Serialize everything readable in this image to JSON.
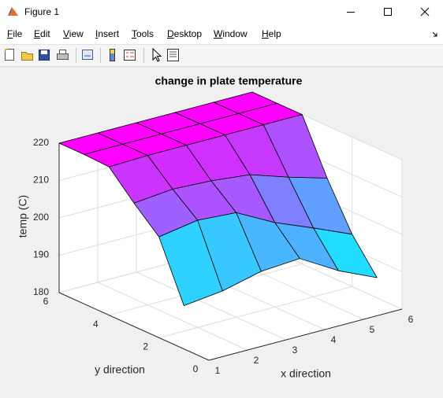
{
  "window": {
    "title": "Figure 1",
    "menu": [
      "File",
      "Edit",
      "View",
      "Insert",
      "Tools",
      "Desktop",
      "Window",
      "Help"
    ]
  },
  "chart_data": {
    "type": "surface",
    "title": "change in plate temperature",
    "x_label": "x direction",
    "y_label": "y direction",
    "z_label": "temp (C)",
    "x": [
      1,
      2,
      3,
      4,
      5,
      6
    ],
    "y": [
      1,
      2,
      3,
      4,
      5,
      6
    ],
    "z": [
      [
        191.6,
        192.8,
        195.3,
        196,
        190,
        185.4
      ],
      [
        207,
        208.7,
        208,
        202.6,
        198.4,
        194
      ],
      [
        213,
        214,
        213.5,
        212.4,
        209,
        206
      ],
      [
        219.7,
        220,
        220,
        220,
        220,
        220
      ],
      [
        220,
        220,
        220,
        220,
        220,
        220
      ],
      [
        220,
        220,
        220,
        220,
        220,
        220
      ]
    ],
    "xlim": [
      1,
      6
    ],
    "ylim": [
      0,
      6
    ],
    "zlim": [
      180,
      220
    ],
    "xticks": [
      1,
      2,
      3,
      4,
      5,
      6
    ],
    "yticks": [
      0,
      2,
      4,
      6
    ],
    "zticks": [
      180,
      190,
      200,
      210,
      220
    ],
    "colormap": "cool",
    "grid": true
  }
}
